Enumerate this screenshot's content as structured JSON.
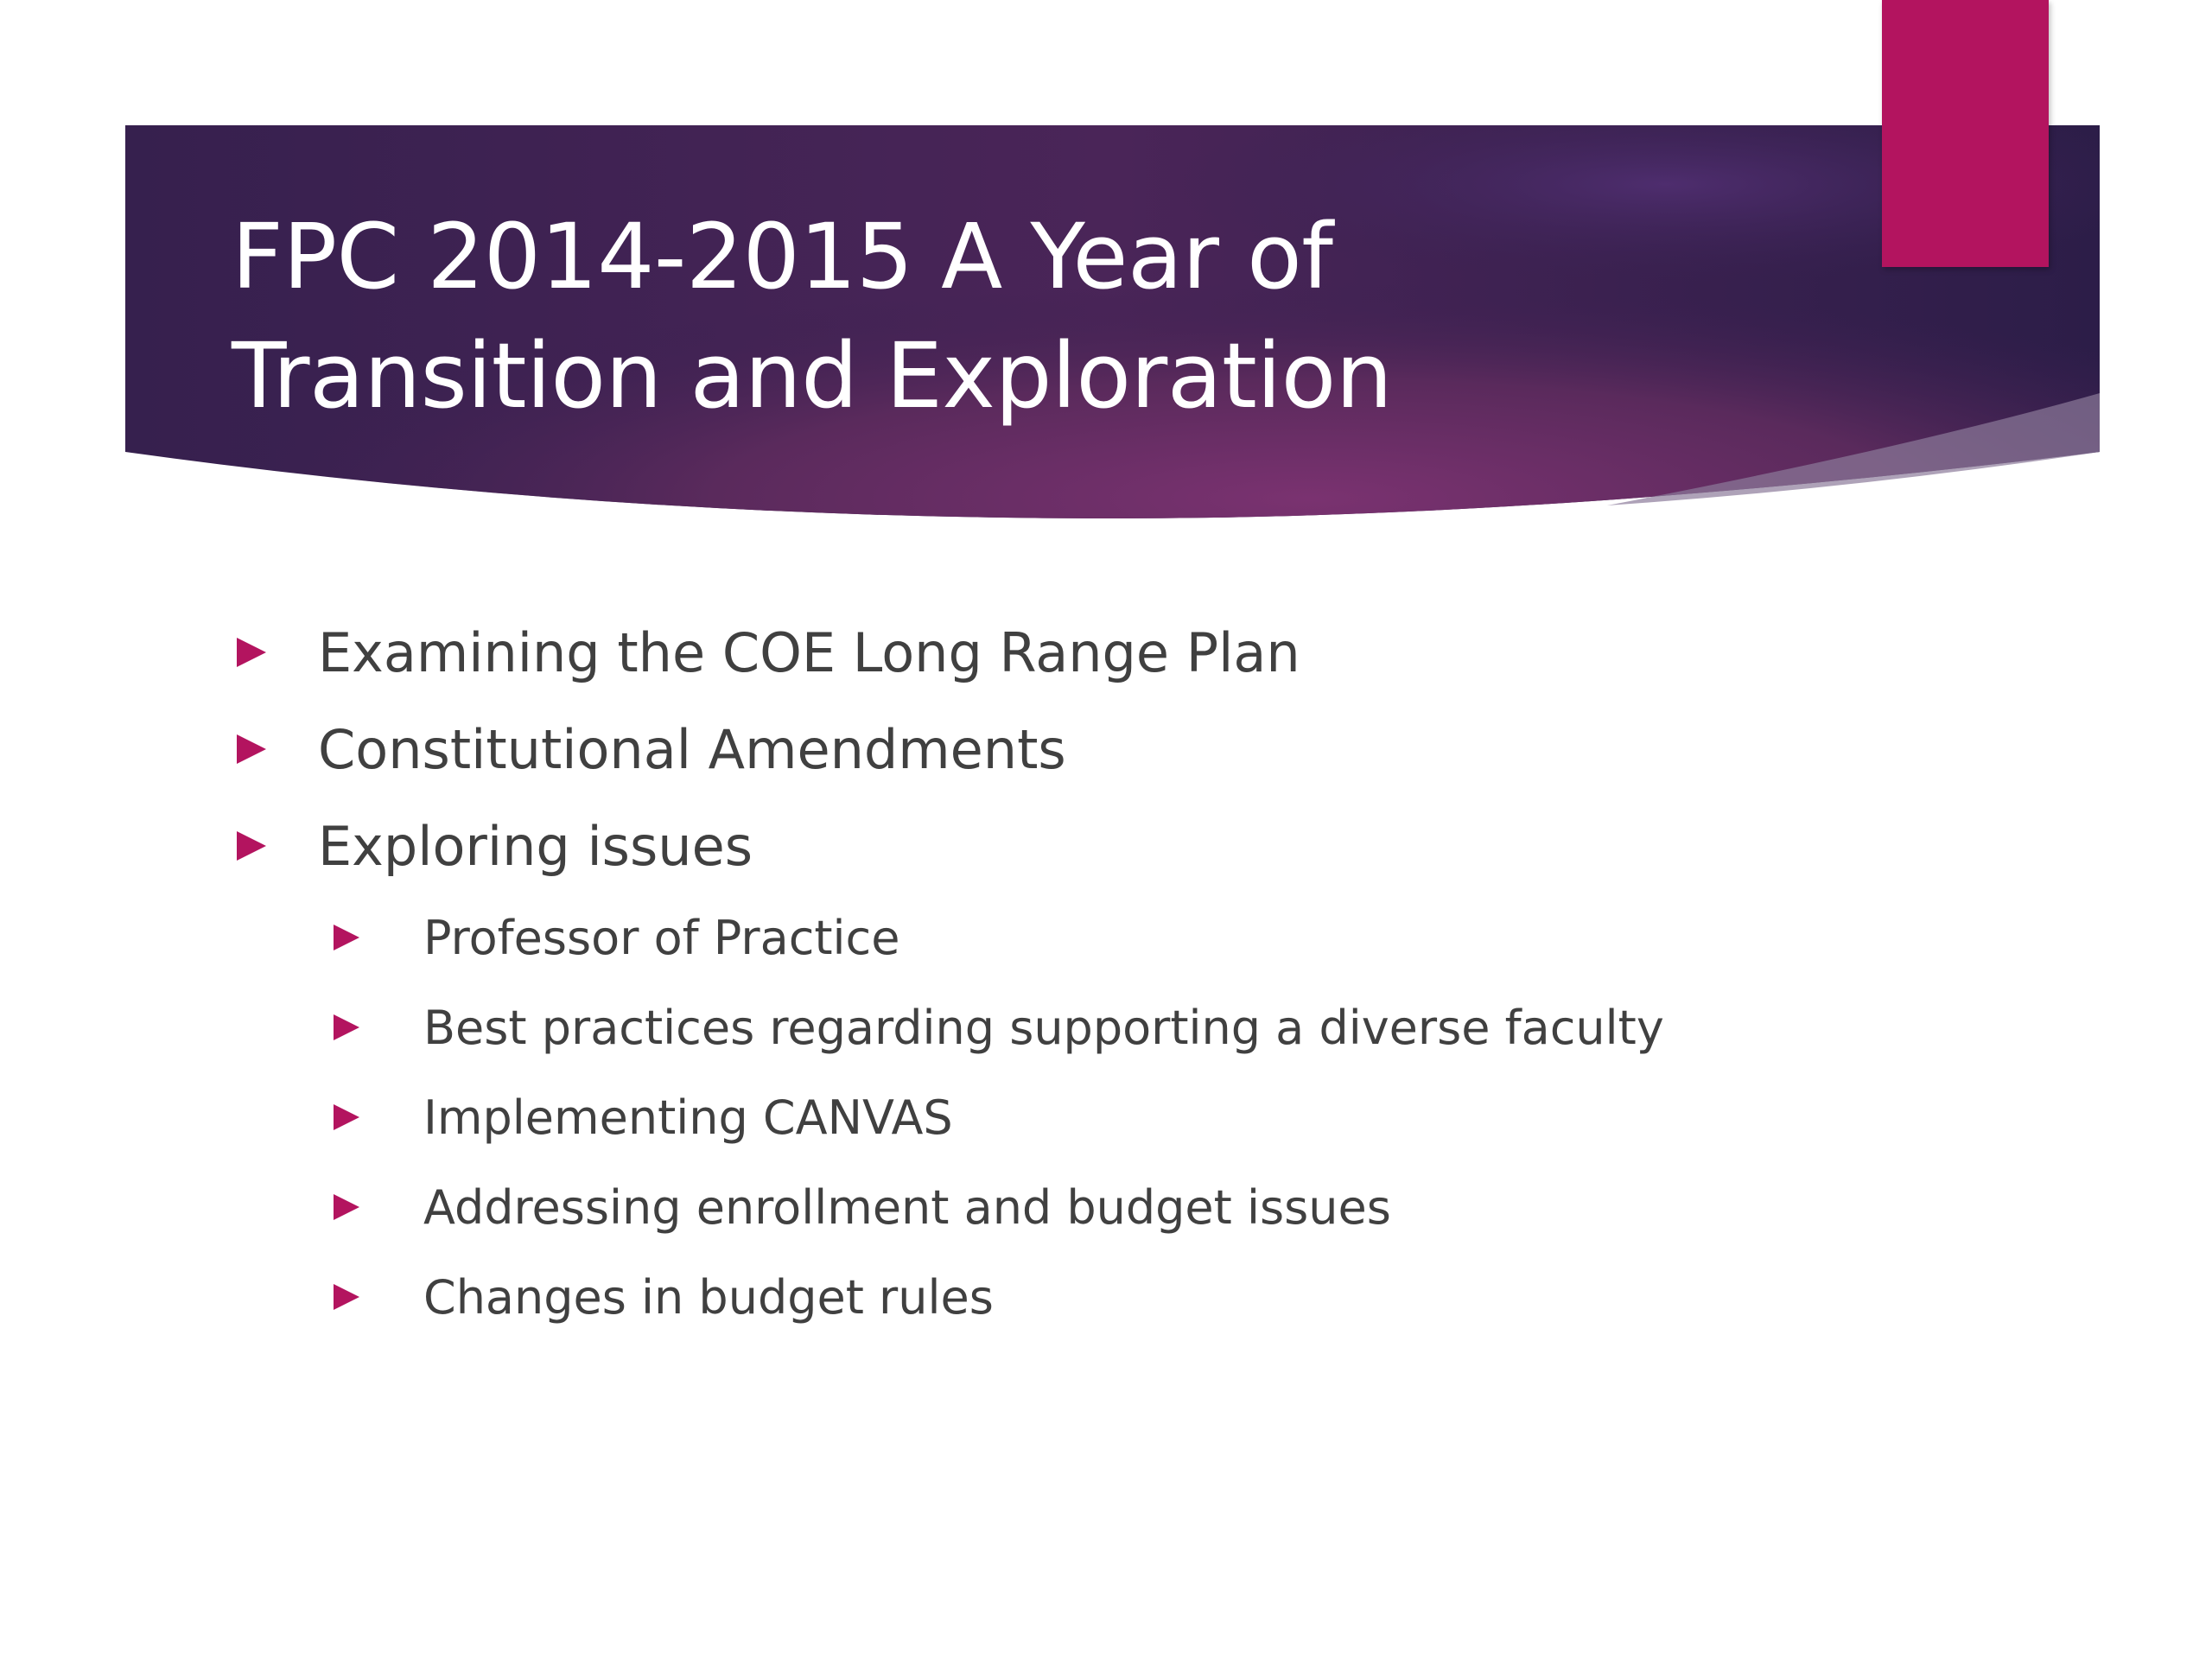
{
  "slide": {
    "title": "FPC 2014-2015 A Year of Transition and Exploration",
    "colors": {
      "banner_dark": "#2f1d4a",
      "banner_mid": "#5e2a5c",
      "banner_glow": "#7a3270",
      "accent": "#b3145f",
      "body_text": "#404040",
      "title_text": "#ffffff"
    },
    "bullets": [
      {
        "text": "Examining the COE Long Range Plan",
        "level": 1
      },
      {
        "text": "Constitutional Amendments",
        "level": 1
      },
      {
        "text": "Exploring issues",
        "level": 1
      },
      {
        "text": "Professor of Practice",
        "level": 2
      },
      {
        "text": "Best practices regarding supporting a diverse faculty",
        "level": 2
      },
      {
        "text": "Implementing CANVAS",
        "level": 2
      },
      {
        "text": "Addressing enrollment and budget issues",
        "level": 2
      },
      {
        "text": "Changes in budget rules",
        "level": 2
      }
    ]
  }
}
